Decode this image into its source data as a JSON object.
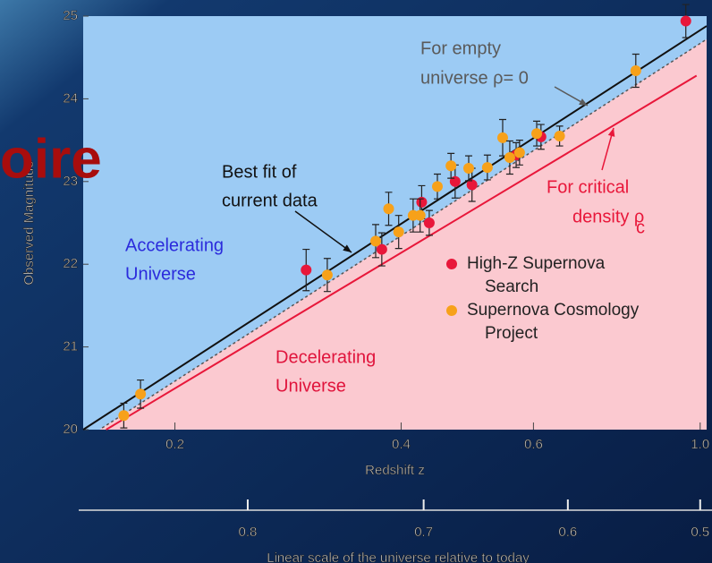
{
  "chart_data": {
    "type": "scatter",
    "overlay_text": "oire",
    "x_label": "Redshift z",
    "y_label": "Observed Magnitude",
    "x2_label": "Linear scale of the universe relative to today",
    "log_x": true,
    "xlim": [
      0.151,
      1.02
    ],
    "ylim": [
      20,
      25
    ],
    "xticks": [
      0.2,
      0.4,
      0.6,
      {
        "value": 1,
        "label": "1.0"
      }
    ],
    "yticks": [
      20,
      21,
      22,
      23,
      24,
      25
    ],
    "x2ticks": [
      0.8,
      0.7,
      0.6,
      0.5
    ],
    "series": [
      {
        "name": "High-Z Supernova Search",
        "color": "#e8173a",
        "x": [
          0.299,
          0.377,
          0.426,
          0.436,
          0.472,
          0.497,
          0.569,
          0.614,
          0.957
        ],
        "values": [
          21.93,
          22.18,
          22.75,
          22.5,
          23.0,
          22.96,
          23.32,
          23.54,
          24.94
        ],
        "errors": [
          0.25,
          0.2,
          0.2,
          0.15,
          0.2,
          0.2,
          0.15,
          0.15,
          0.2
        ]
      },
      {
        "name": "Supernova Cosmology Project",
        "color": "#f7a11a",
        "x": [
          0.171,
          0.18,
          0.319,
          0.37,
          0.385,
          0.397,
          0.415,
          0.424,
          0.447,
          0.466,
          0.492,
          0.521,
          0.546,
          0.558,
          0.575,
          0.606,
          0.65,
          0.821
        ],
        "values": [
          20.17,
          20.43,
          21.87,
          22.28,
          22.67,
          22.39,
          22.59,
          22.59,
          22.94,
          23.19,
          23.16,
          23.17,
          23.53,
          23.29,
          23.35,
          23.58,
          23.55,
          24.34
        ],
        "errors": [
          0.15,
          0.17,
          0.2,
          0.2,
          0.2,
          0.2,
          0.2,
          0.2,
          0.15,
          0.15,
          0.15,
          0.15,
          0.22,
          0.2,
          0.15,
          0.15,
          0.12,
          0.2
        ]
      }
    ],
    "lines": [
      {
        "color": "#111111",
        "dashed": false,
        "x": [
          0.151,
          1.02
        ],
        "values": [
          20.0,
          24.88
        ],
        "label": [
          "Best fit of",
          "current data"
        ]
      },
      {
        "color": "#555555",
        "dashed": true,
        "x": [
          0.16,
          1.02
        ],
        "values": [
          20.02,
          24.72
        ],
        "label": [
          "For empty",
          "universe ρ= 0"
        ]
      },
      {
        "color": "#e8173a",
        "dashed": false,
        "x": [
          0.162,
          0.989
        ],
        "values": [
          20.0,
          24.28
        ],
        "label": [
          "For critical",
          "density ρ"
        ],
        "label_subscript": "c"
      }
    ],
    "regions": [
      {
        "color": "#2b2bdc",
        "label": [
          "Accelerating",
          "Universe"
        ]
      },
      {
        "color": "#e0143c",
        "label": [
          "Decelerating",
          "Universe"
        ]
      }
    ]
  }
}
